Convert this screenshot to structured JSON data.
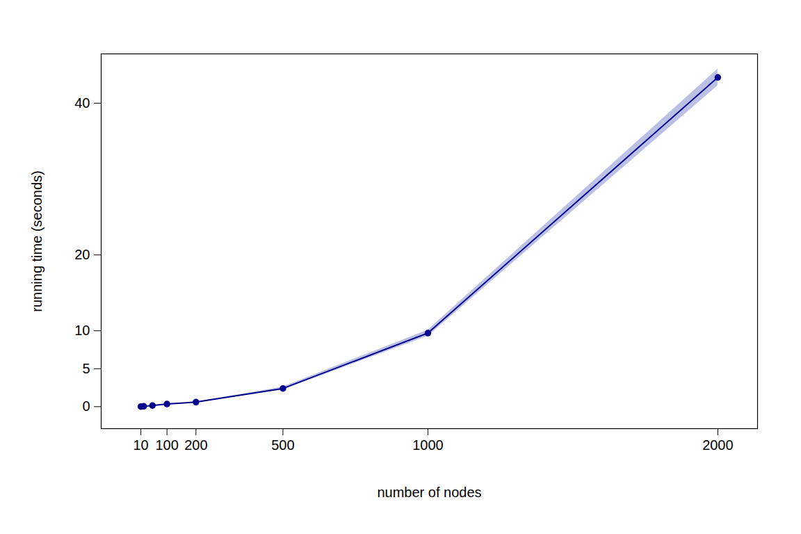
{
  "chart_data": {
    "type": "line",
    "x_label": "number of nodes",
    "y_label": "running time (seconds)",
    "x": [
      10,
      20,
      50,
      100,
      200,
      500,
      1000,
      2000
    ],
    "series": [
      {
        "color": "#00008b",
        "marker": "circle",
        "values": [
          0.02,
          0.05,
          0.15,
          0.35,
          0.6,
          2.4,
          9.7,
          43.4
        ],
        "lower": [
          0.02,
          0.05,
          0.14,
          0.33,
          0.57,
          2.2,
          9.3,
          42.3
        ],
        "upper": [
          0.02,
          0.05,
          0.16,
          0.37,
          0.63,
          2.6,
          10.1,
          44.5
        ]
      }
    ],
    "xlim": [
      -127,
      2137
    ],
    "xticks": [
      10,
      100,
      200,
      500,
      1000,
      2000
    ],
    "ylim": [
      -2.9,
      46.5
    ],
    "yticks": [
      0,
      5,
      10,
      20,
      40
    ],
    "grid": false
  }
}
